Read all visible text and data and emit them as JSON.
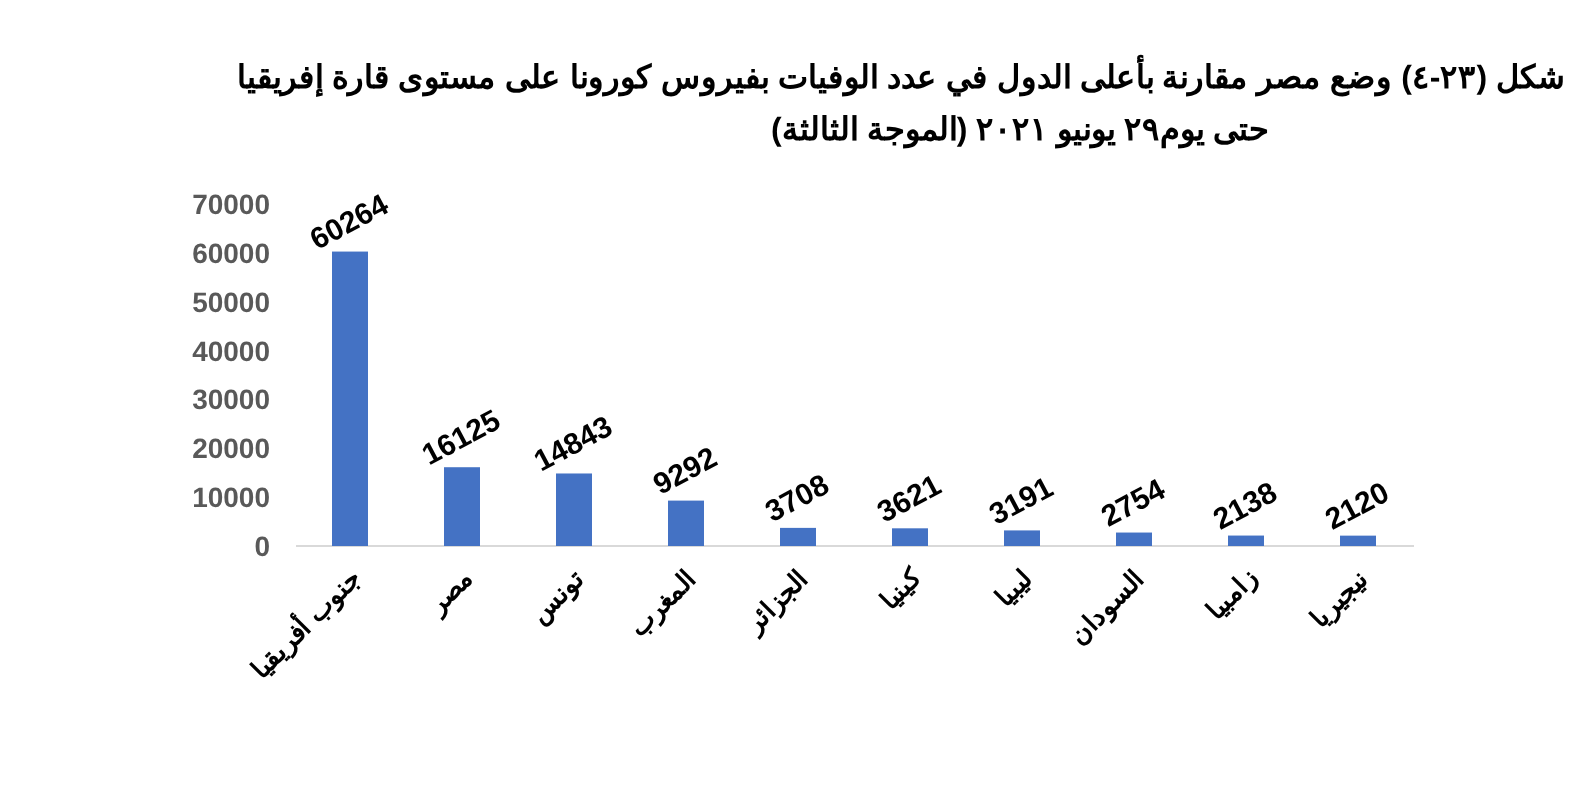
{
  "chart_data": {
    "type": "bar",
    "title": "شكل (٢٣-٤) وضع مصر مقارنة بأعلى الدول في عدد الوفيات بفيروس كورونا على مستوى قارة إفريقيا",
    "subtitle": "حتى يوم٢٩ يونيو ٢٠٢١ (الموجة الثالثة)",
    "categories": [
      "جنوب أفريقيا",
      "مصر",
      "تونس",
      "المغرب",
      "الجزائر",
      "كينيا",
      "ليبيا",
      "السودان",
      "زامبيا",
      "نيجيريا"
    ],
    "values": [
      60264,
      16125,
      14843,
      9292,
      3708,
      3621,
      3191,
      2754,
      2138,
      2120
    ],
    "color": "#4472c4",
    "ylim": [
      0,
      70000
    ],
    "yticks": [
      0,
      10000,
      20000,
      30000,
      40000,
      50000,
      60000,
      70000
    ],
    "data_labels": true
  }
}
